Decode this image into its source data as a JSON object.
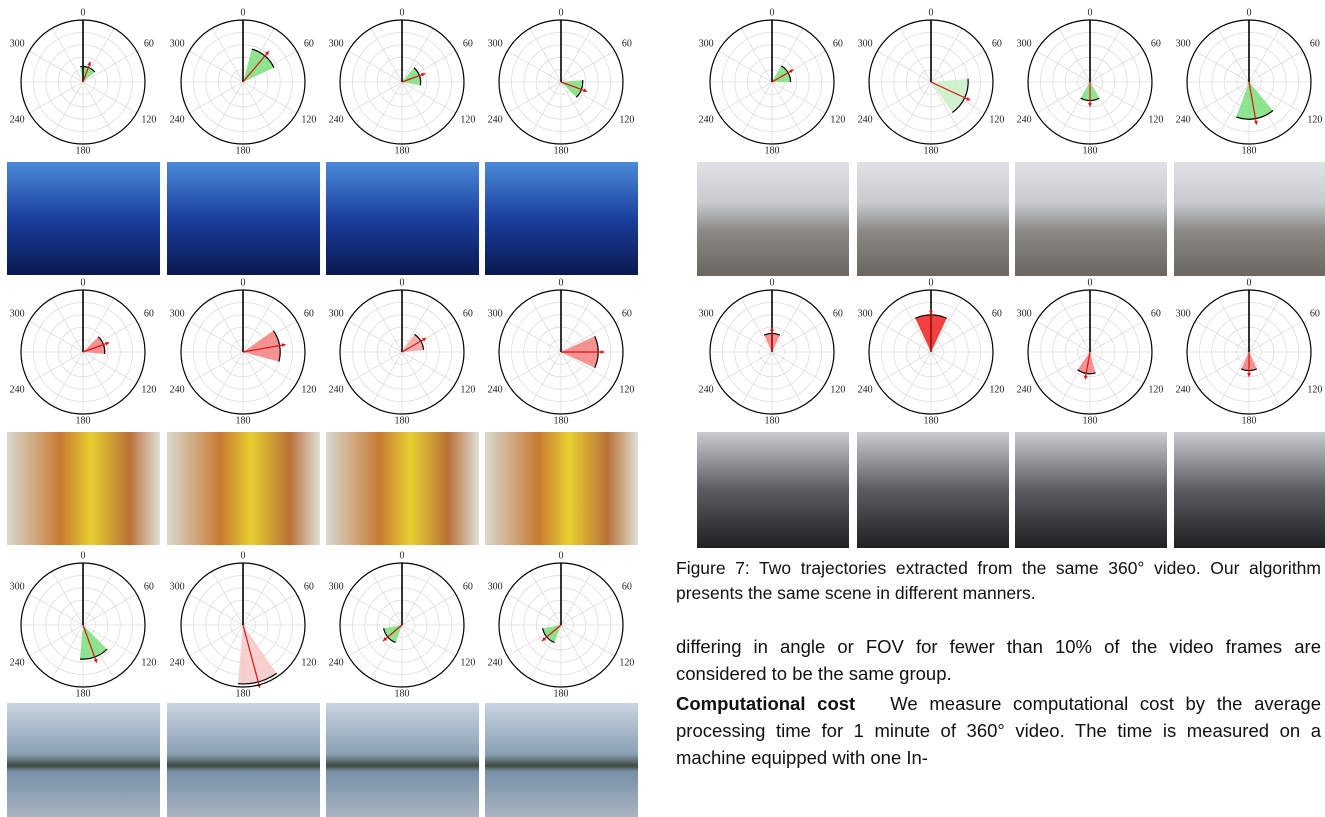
{
  "axis_labels": [
    0,
    60,
    120,
    180,
    240,
    300
  ],
  "left_plots": [
    [
      {
        "angle": 20,
        "fov": 60,
        "extent": 0.25,
        "color": "#7be07b"
      },
      {
        "angle": 40,
        "fov": 50,
        "extent": 0.55,
        "color": "#7be07b"
      },
      {
        "angle": 70,
        "fov": 60,
        "extent": 0.3,
        "color": "#7be07b"
      },
      {
        "angle": 110,
        "fov": 50,
        "extent": 0.35,
        "color": "#7be07b"
      }
    ],
    [
      {
        "angle": 70,
        "fov": 50,
        "extent": 0.35,
        "color": "#f38080"
      },
      {
        "angle": 80,
        "fov": 50,
        "extent": 0.6,
        "color": "#f38080"
      },
      {
        "angle": 60,
        "fov": 50,
        "extent": 0.35,
        "color": "#f6a0a0"
      },
      {
        "angle": 90,
        "fov": 50,
        "extent": 0.6,
        "color": "#f38080"
      }
    ],
    [
      {
        "angle": 160,
        "fov": 50,
        "extent": 0.55,
        "color": "#7be07b"
      },
      {
        "angle": 165,
        "fov": 40,
        "extent": 0.95,
        "color": "#f8c8c8"
      },
      {
        "angle": 230,
        "fov": 60,
        "extent": 0.3,
        "color": "#7be07b"
      },
      {
        "angle": 230,
        "fov": 60,
        "extent": 0.3,
        "color": "#7be07b"
      }
    ]
  ],
  "right_plots": [
    [
      {
        "angle": 60,
        "fov": 60,
        "extent": 0.3,
        "color": "#7be07b"
      },
      {
        "angle": 115,
        "fov": 60,
        "extent": 0.6,
        "color": "#c8f0c8"
      },
      {
        "angle": 180,
        "fov": 60,
        "extent": 0.3,
        "color": "#7be07b"
      },
      {
        "angle": 170,
        "fov": 60,
        "extent": 0.6,
        "color": "#7be07b"
      }
    ],
    [
      {
        "angle": 0,
        "fov": 50,
        "extent": 0.3,
        "color": "#f38080"
      },
      {
        "angle": 0,
        "fov": 50,
        "extent": 0.6,
        "color": "#ee2020"
      },
      {
        "angle": 190,
        "fov": 50,
        "extent": 0.35,
        "color": "#f38080"
      },
      {
        "angle": 180,
        "fov": 50,
        "extent": 0.3,
        "color": "#f38080"
      }
    ]
  ],
  "caption": "Figure 7: Two trajectories extracted from the same 360° video. Our algorithm presents the same scene in different manners.",
  "paragraph_1": "differing in angle or FOV for fewer than 10% of the video frames are considered to be the same group.",
  "paragraph_2": {
    "heading": "Computational cost",
    "text": "We measure computational cost by the average processing time for 1 minute of 360° video. The time is measured on a machine equipped with one In-"
  }
}
